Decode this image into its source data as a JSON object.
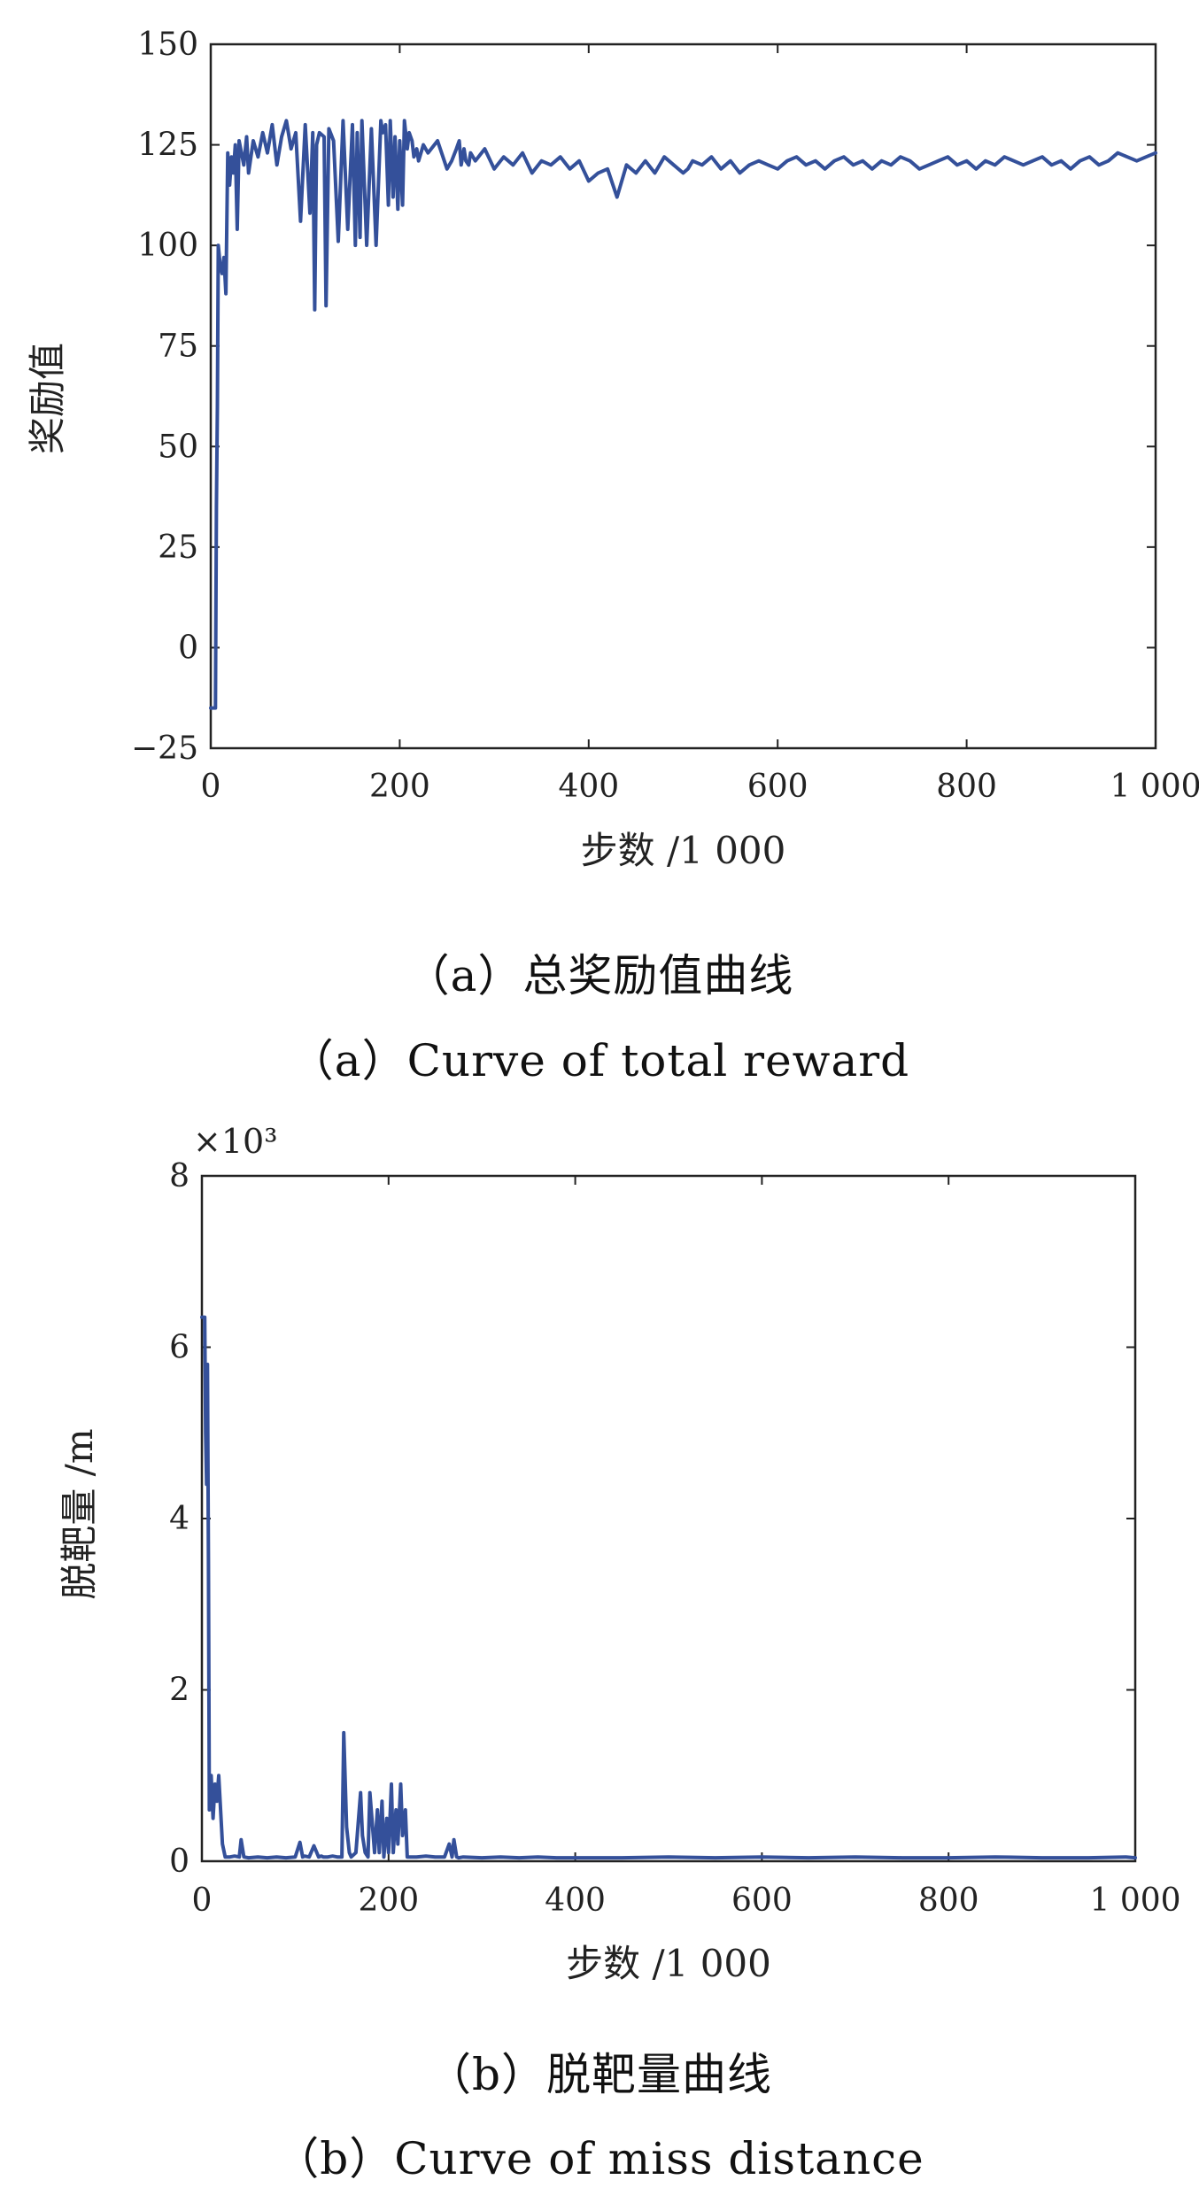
{
  "chart_data": [
    {
      "type": "line",
      "xlabel": "步数 /1 000",
      "ylabel": "奖励值",
      "xlim": [
        0,
        1000
      ],
      "ylim": [
        -25,
        150
      ],
      "x_ticks": [
        0,
        200,
        400,
        600,
        800,
        1000
      ],
      "x_tick_labels": [
        "0",
        "200",
        "400",
        "600",
        "800",
        "1 000"
      ],
      "y_ticks": [
        -25,
        0,
        25,
        50,
        75,
        100,
        125,
        150
      ],
      "y_tick_labels": [
        "−25",
        "0",
        "25",
        "50",
        "75",
        "100",
        "125",
        "150"
      ],
      "grid": false,
      "line_color": "#34509a",
      "series": [
        {
          "x": [
            0,
            5,
            6,
            7,
            8,
            10,
            12,
            14,
            16,
            18,
            20,
            22,
            24,
            26,
            28,
            30,
            35,
            38,
            40,
            45,
            50,
            55,
            60,
            65,
            70,
            75,
            80,
            85,
            90,
            95,
            100,
            105,
            108,
            110,
            112,
            115,
            120,
            122,
            125,
            130,
            135,
            140,
            145,
            150,
            153,
            155,
            158,
            160,
            165,
            170,
            175,
            180,
            182,
            185,
            188,
            190,
            193,
            195,
            198,
            200,
            203,
            205,
            208,
            210,
            213,
            215,
            218,
            220,
            225,
            230,
            240,
            250,
            255,
            260,
            263,
            265,
            268,
            270,
            273,
            275,
            280,
            290,
            300,
            310,
            320,
            330,
            340,
            350,
            360,
            370,
            380,
            390,
            400,
            410,
            420,
            430,
            440,
            450,
            460,
            470,
            480,
            490,
            500,
            505,
            510,
            520,
            530,
            540,
            550,
            560,
            570,
            580,
            590,
            600,
            610,
            620,
            630,
            640,
            650,
            660,
            670,
            680,
            690,
            700,
            710,
            720,
            730,
            740,
            750,
            760,
            770,
            780,
            790,
            800,
            810,
            820,
            830,
            840,
            850,
            860,
            870,
            880,
            890,
            900,
            910,
            920,
            930,
            940,
            950,
            960,
            970,
            980,
            990,
            1000
          ],
          "y": [
            -15,
            -15,
            35,
            60,
            100,
            95,
            93,
            97,
            88,
            123,
            115,
            122,
            118,
            125,
            104,
            126,
            120,
            127,
            118,
            126,
            122,
            128,
            123,
            130,
            120,
            127,
            131,
            124,
            128,
            106,
            130,
            108,
            128,
            84,
            125,
            128,
            127,
            85,
            129,
            126,
            101,
            131,
            104,
            130,
            100,
            128,
            102,
            131,
            100,
            129,
            100,
            131,
            128,
            130,
            110,
            131,
            112,
            127,
            109,
            126,
            110,
            131,
            124,
            128,
            126,
            122,
            124,
            121,
            125,
            123,
            126,
            119,
            121,
            124,
            126,
            120,
            124,
            121,
            120,
            123,
            121,
            124,
            119,
            122,
            120,
            123,
            118,
            121,
            120,
            122,
            119,
            121,
            116,
            118,
            119,
            112,
            120,
            118,
            121,
            118,
            122,
            120,
            118,
            119,
            121,
            120,
            122,
            119,
            121,
            118,
            120,
            121,
            120,
            119,
            121,
            122,
            120,
            121,
            119,
            121,
            122,
            120,
            121,
            119,
            121,
            120,
            122,
            121,
            119,
            120,
            121,
            122,
            120,
            121,
            119,
            121,
            120,
            122,
            121,
            120,
            121,
            122,
            120,
            121,
            119,
            121,
            122,
            120,
            121,
            123,
            122,
            121,
            122,
            123
          ]
        }
      ],
      "caption_cn": "（a）总奖励值曲线",
      "caption_en": "（a）Curve of total reward"
    },
    {
      "type": "line",
      "xlabel": "步数 /1 000",
      "ylabel": "脱靶量 /m",
      "y_multiplier": "×10³",
      "xlim": [
        0,
        1000
      ],
      "ylim": [
        0,
        8
      ],
      "x_ticks": [
        0,
        200,
        400,
        600,
        800,
        1000
      ],
      "x_tick_labels": [
        "0",
        "200",
        "400",
        "600",
        "800",
        "1 000"
      ],
      "y_ticks": [
        0,
        2,
        4,
        6,
        8
      ],
      "y_tick_labels": [
        "0",
        "2",
        "4",
        "6",
        "8"
      ],
      "grid": false,
      "line_color": "#34509a",
      "series": [
        {
          "x": [
            0,
            3,
            4,
            5,
            6,
            7,
            8,
            10,
            12,
            14,
            16,
            18,
            20,
            22,
            25,
            30,
            35,
            40,
            42,
            45,
            50,
            60,
            70,
            80,
            90,
            100,
            105,
            108,
            110,
            115,
            120,
            125,
            128,
            130,
            135,
            140,
            145,
            150,
            152,
            155,
            158,
            160,
            165,
            170,
            172,
            175,
            178,
            180,
            185,
            188,
            190,
            193,
            195,
            198,
            200,
            203,
            205,
            208,
            210,
            213,
            215,
            218,
            220,
            230,
            240,
            250,
            260,
            265,
            268,
            270,
            273,
            275,
            280,
            300,
            320,
            340,
            360,
            380,
            400,
            450,
            500,
            550,
            600,
            650,
            700,
            750,
            800,
            850,
            900,
            950,
            990,
            1000
          ],
          "y": [
            6.35,
            6.35,
            5.0,
            4.4,
            5.8,
            3.5,
            0.6,
            1.0,
            0.5,
            0.9,
            0.7,
            1.0,
            0.6,
            0.2,
            0.05,
            0.05,
            0.06,
            0.05,
            0.25,
            0.05,
            0.04,
            0.05,
            0.04,
            0.05,
            0.04,
            0.05,
            0.22,
            0.05,
            0.06,
            0.05,
            0.18,
            0.05,
            0.06,
            0.05,
            0.05,
            0.06,
            0.05,
            0.05,
            1.5,
            0.4,
            0.1,
            0.05,
            0.1,
            0.8,
            0.3,
            0.1,
            0.05,
            0.8,
            0.1,
            0.6,
            0.1,
            0.7,
            0.05,
            0.5,
            0.1,
            0.9,
            0.1,
            0.6,
            0.2,
            0.9,
            0.3,
            0.6,
            0.05,
            0.05,
            0.06,
            0.05,
            0.05,
            0.2,
            0.05,
            0.25,
            0.05,
            0.04,
            0.05,
            0.04,
            0.05,
            0.04,
            0.05,
            0.04,
            0.04,
            0.04,
            0.05,
            0.04,
            0.05,
            0.04,
            0.05,
            0.04,
            0.04,
            0.05,
            0.04,
            0.04,
            0.05,
            0.04
          ]
        }
      ],
      "caption_cn": "（b）脱靶量曲线",
      "caption_en": "（b）Curve of miss distance"
    }
  ]
}
